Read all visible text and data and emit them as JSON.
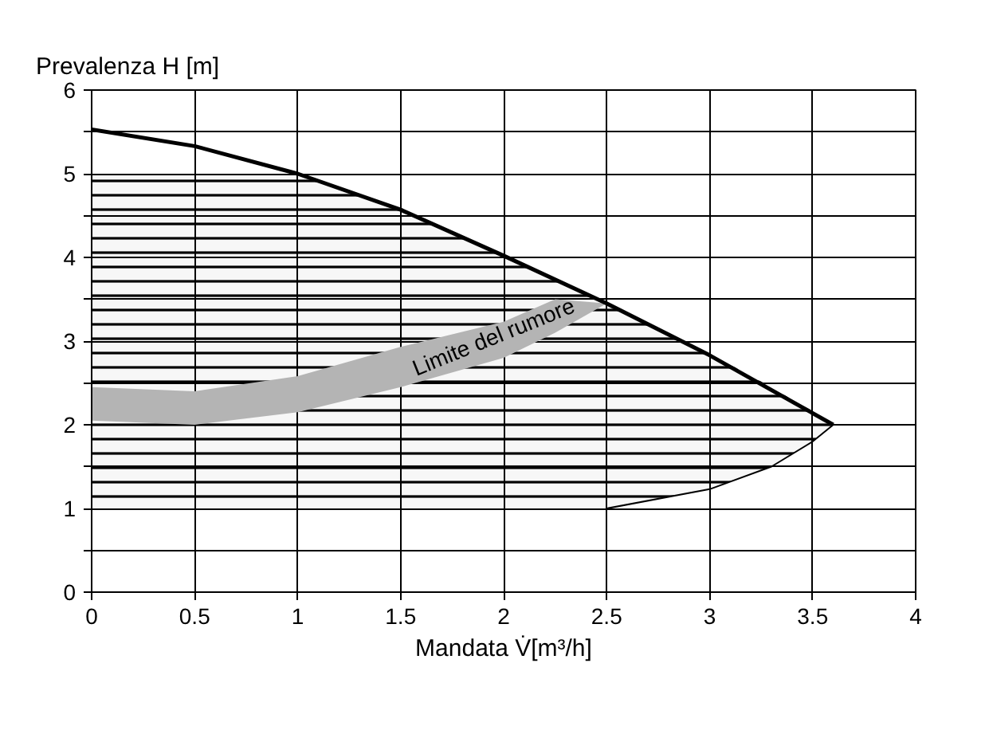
{
  "chart_data": {
    "type": "line",
    "ylabel": "Prevalenza H [m]",
    "xlabel": "Mandata V̇[m³/h]",
    "xlim": [
      0,
      4
    ],
    "ylim": [
      0,
      6
    ],
    "xticks": [
      0,
      0.5,
      1,
      1.5,
      2,
      2.5,
      3,
      3.5,
      4
    ],
    "yticks": [
      0,
      {
        "value": 0.5,
        "label": null
      },
      1,
      {
        "value": 1.5,
        "label": null
      },
      2,
      {
        "value": 2.5,
        "label": null
      },
      3,
      {
        "value": 3.5,
        "label": null
      },
      4,
      {
        "value": 4.5,
        "label": null
      },
      5,
      {
        "value": 5.5,
        "label": null
      },
      6
    ],
    "grid": true,
    "series": [
      {
        "type": "area",
        "color": "#000000",
        "x": [
          0,
          1,
          1.5,
          2,
          2.5,
          3,
          3.3,
          3.5,
          3.6
        ],
        "values": [
          null,
          null,
          null,
          null,
          null,
          null,
          null,
          null,
          null
        ],
        "upper": [
          5.0,
          5.0,
          4.55,
          4.0,
          3.45,
          2.85,
          2.45,
          2.15,
          2.0
        ],
        "lower": [
          1.0,
          1.0,
          1.0,
          1.0,
          1.0,
          1.23,
          1.5,
          1.8,
          2.0
        ]
      },
      {
        "color": "#b4b4b4",
        "x": [
          0,
          0.5,
          1,
          1.5,
          2,
          2.25,
          2.5
        ],
        "values": [
          null,
          null,
          null,
          null,
          null,
          null,
          null
        ],
        "lower": [
          2.05,
          2.0,
          2.15,
          2.45,
          2.8,
          3.1,
          3.45
        ],
        "upper": [
          2.45,
          2.4,
          2.58,
          2.93,
          3.23,
          3.5,
          3.45
        ]
      },
      {
        "color": "#000000",
        "x": [
          0,
          0.5,
          1,
          1.5,
          2,
          2.5,
          3,
          3.6
        ],
        "values": [
          5.53,
          5.33,
          5.0,
          4.57,
          4.02,
          3.45,
          2.83,
          2.0
        ]
      },
      {
        "color": "#000000",
        "x": [
          2.5,
          3,
          3.3,
          3.5,
          3.6
        ],
        "values": [
          1.0,
          1.23,
          1.5,
          1.8,
          2.0
        ]
      }
    ],
    "annotations": [
      "Limite del rumore"
    ]
  }
}
